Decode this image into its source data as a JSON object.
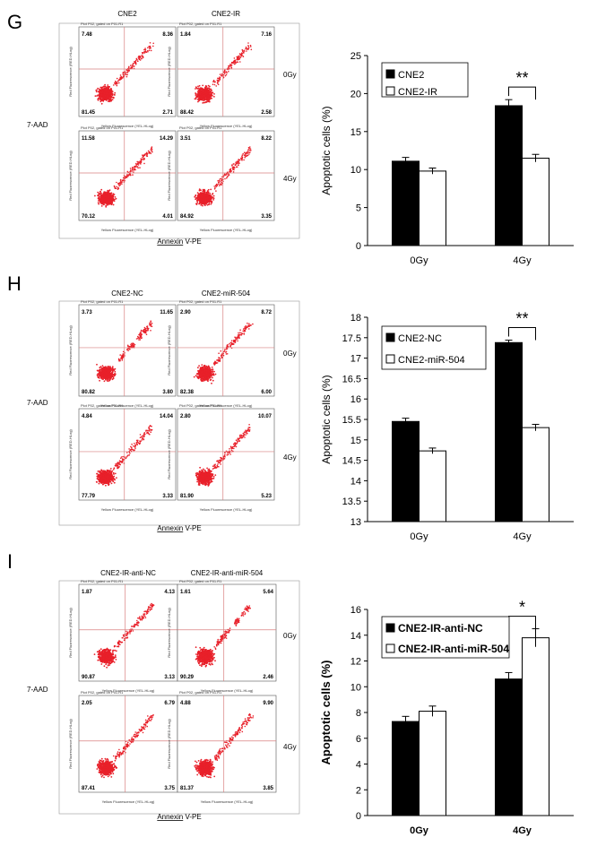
{
  "panels": [
    {
      "letter": "G",
      "flow": {
        "columns": [
          "CNE2",
          "CNE2-IR"
        ],
        "rows": [
          "0Gy",
          "4Gy"
        ],
        "y_label": "7-AAD",
        "x_label_prefix": "Annexin",
        "x_label_suffix": " V-PE",
        "plot_title": "Plot P02, gated on P01.R1",
        "plot_xlabel": "Yellow Fluorescence (YEL-HLog)",
        "plot_ylabel": "Red Fluorescence (RED-HLog)",
        "plots": [
          {
            "col": 0,
            "row": 0,
            "tl": "7.48",
            "tr": "8.36",
            "bl": "81.45",
            "br": "2.71"
          },
          {
            "col": 1,
            "row": 0,
            "tl": "1.84",
            "tr": "7.16",
            "bl": "88.42",
            "br": "2.58"
          },
          {
            "col": 0,
            "row": 1,
            "tl": "11.58",
            "tr": "14.29",
            "bl": "70.12",
            "br": "4.01"
          },
          {
            "col": 1,
            "row": 1,
            "tl": "3.51",
            "tr": "8.22",
            "bl": "84.92",
            "br": "3.35"
          }
        ]
      },
      "chart_data": {
        "type": "bar",
        "categories": [
          "0Gy",
          "4Gy"
        ],
        "series": [
          {
            "name": "CNE2",
            "values": [
              11.1,
              18.4
            ],
            "errors": [
              0.5,
              0.8
            ]
          },
          {
            "name": "CNE2-IR",
            "values": [
              9.8,
              11.5
            ],
            "errors": [
              0.4,
              0.5
            ]
          }
        ],
        "ylabel": "Apoptotic cells (%)",
        "ylim": [
          0,
          25
        ],
        "yticks": [
          "0",
          "5",
          "10",
          "15",
          "20",
          "25"
        ],
        "significance": {
          "category": "4Gy",
          "label": "**"
        },
        "legend": "top-left"
      }
    },
    {
      "letter": "H",
      "flow": {
        "columns": [
          "CNE2-NC",
          "CNE2-miR-504"
        ],
        "rows": [
          "0Gy",
          "4Gy"
        ],
        "y_label": "7-AAD",
        "x_label_prefix": "Annexin",
        "x_label_suffix": " V-PE",
        "plot_title": "Plot P02, gated on P01.R1",
        "plot_xlabel": "Yellow Fluorescence (YEL-HLog)",
        "plot_ylabel": "Red Fluorescence (RED-HLog)",
        "plots": [
          {
            "col": 0,
            "row": 0,
            "tl": "3.73",
            "tr": "11.65",
            "bl": "80.82",
            "br": "3.80"
          },
          {
            "col": 1,
            "row": 0,
            "tl": "2.90",
            "tr": "8.72",
            "bl": "82.38",
            "br": "6.00"
          },
          {
            "col": 0,
            "row": 1,
            "tl": "4.84",
            "tr": "14.04",
            "bl": "77.79",
            "br": "3.33"
          },
          {
            "col": 1,
            "row": 1,
            "tl": "2.80",
            "tr": "10.07",
            "bl": "81.90",
            "br": "5.23"
          }
        ]
      },
      "chart_data": {
        "type": "bar",
        "categories": [
          "0Gy",
          "4Gy"
        ],
        "series": [
          {
            "name": "CNE2-NC",
            "values": [
              15.45,
              17.38
            ],
            "errors": [
              0.08,
              0.06
            ]
          },
          {
            "name": "CNE2-miR-504",
            "values": [
              14.73,
              15.3
            ],
            "errors": [
              0.07,
              0.08
            ]
          }
        ],
        "ylabel": "Apoptotic cells (%)",
        "ylim": [
          13,
          18
        ],
        "yticks": [
          "13",
          "13.5",
          "14",
          "14.5",
          "15",
          "15.5",
          "16",
          "16.5",
          "17",
          "17.5",
          "18"
        ],
        "significance": {
          "category": "4Gy",
          "label": "**"
        },
        "legend": "top-left"
      }
    },
    {
      "letter": "I",
      "flow": {
        "columns": [
          "CNE2-IR-anti-NC",
          "CNE2-IR-anti-miR-504"
        ],
        "rows": [
          "0Gy",
          "4Gy"
        ],
        "y_label": "7-AAD",
        "x_label_prefix": "Annexin",
        "x_label_suffix": " V-PE",
        "plot_title": "Plot P02, gated on P01.R1",
        "plot_xlabel": "Yellow Fluorescence (YEL-HLog)",
        "plot_ylabel": "Red Fluorescence (RED-HLog)",
        "plots": [
          {
            "col": 0,
            "row": 0,
            "tl": "1.87",
            "tr": "4.13",
            "bl": "90.87",
            "br": "3.13"
          },
          {
            "col": 1,
            "row": 0,
            "tl": "1.61",
            "tr": "5.64",
            "bl": "90.29",
            "br": "2.46"
          },
          {
            "col": 0,
            "row": 1,
            "tl": "2.05",
            "tr": "6.79",
            "bl": "87.41",
            "br": "3.75"
          },
          {
            "col": 1,
            "row": 1,
            "tl": "4.88",
            "tr": "9.90",
            "bl": "81.37",
            "br": "3.85"
          }
        ]
      },
      "chart_data": {
        "type": "bar",
        "categories": [
          "0Gy",
          "4Gy"
        ],
        "series": [
          {
            "name": "CNE2-IR-anti-NC",
            "values": [
              7.3,
              10.6
            ],
            "errors": [
              0.4,
              0.5
            ]
          },
          {
            "name": "CNE2-IR-anti-miR-504",
            "values": [
              8.1,
              13.8
            ],
            "errors": [
              0.4,
              0.7
            ]
          }
        ],
        "ylabel": "Apoptotic cells (%)",
        "ylim": [
          0,
          16
        ],
        "yticks": [
          "0",
          "2",
          "4",
          "6",
          "8",
          "10",
          "12",
          "14",
          "16"
        ],
        "significance": {
          "category": "4Gy",
          "label": "*"
        },
        "legend": "top-left"
      }
    }
  ],
  "colors": {
    "series1": "#000000",
    "series2": "#ffffff",
    "dots": "#e8202a",
    "gate": "#d98080"
  }
}
